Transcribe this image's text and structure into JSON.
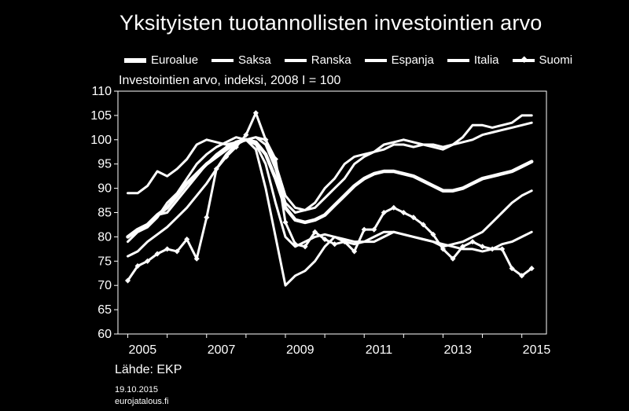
{
  "header": {
    "title": "Yksityisten tuotannollisten investointien arvo",
    "unit_label": "Investointien arvo, indeksi, 2008 I = 100"
  },
  "footer": {
    "source": "Lähde: EKP",
    "date": "19.10.2015",
    "site": "eurojatalous.fi"
  },
  "colors": {
    "background": "#000000",
    "lines": "#ffffff"
  },
  "chart_data": {
    "type": "line",
    "title": "Yksityisten tuotannollisten investointien arvo",
    "ylabel": "Investointien arvo, indeksi, 2008 I = 100",
    "ylim": [
      60,
      110
    ],
    "yticks": [
      60,
      65,
      70,
      75,
      80,
      85,
      90,
      95,
      100,
      105,
      110
    ],
    "xlim": [
      2004.75,
      2015.625
    ],
    "xticks": [
      "2005",
      "2007",
      "2009",
      "2011",
      "2013",
      "2015"
    ],
    "x_quarters": [
      "2005 I",
      "2005 II",
      "2005 III",
      "2005 IV",
      "2006 I",
      "2006 II",
      "2006 III",
      "2006 IV",
      "2007 I",
      "2007 II",
      "2007 III",
      "2007 IV",
      "2008 I",
      "2008 II",
      "2008 III",
      "2008 IV",
      "2009 I",
      "2009 II",
      "2009 III",
      "2009 IV",
      "2010 I",
      "2010 II",
      "2010 III",
      "2010 IV",
      "2011 I",
      "2011 II",
      "2011 III",
      "2011 IV",
      "2012 I",
      "2012 II",
      "2012 III",
      "2012 IV",
      "2013 I",
      "2013 II",
      "2013 III",
      "2013 IV",
      "2014 I",
      "2014 II",
      "2014 III",
      "2014 IV",
      "2015 I",
      "2015 II"
    ],
    "grid": false,
    "legend_position": "top",
    "series": [
      {
        "name": "Euroalue",
        "style": "thick",
        "values": [
          80.0,
          81.5,
          82.5,
          84.5,
          86.0,
          88.5,
          91.0,
          93.0,
          95.0,
          96.5,
          98.0,
          99.5,
          100.0,
          99.5,
          97.0,
          92.0,
          86.0,
          83.5,
          83.0,
          83.5,
          84.5,
          86.5,
          88.5,
          90.5,
          92.0,
          93.0,
          93.5,
          93.5,
          93.0,
          92.5,
          91.5,
          90.5,
          89.5,
          89.5,
          90.0,
          91.0,
          92.0,
          92.5,
          93.0,
          93.5,
          94.5,
          95.5
        ]
      },
      {
        "name": "Saksa",
        "style": "normal",
        "values": [
          79.0,
          81.0,
          82.0,
          84.0,
          87.0,
          89.0,
          92.0,
          95.0,
          97.0,
          98.5,
          99.5,
          100.5,
          100.0,
          100.5,
          99.0,
          94.0,
          87.0,
          85.0,
          85.5,
          87.0,
          90.0,
          92.0,
          95.0,
          96.5,
          97.0,
          97.5,
          98.0,
          99.0,
          99.0,
          98.5,
          99.0,
          99.0,
          98.5,
          99.0,
          99.5,
          100.0,
          101.0,
          101.5,
          102.0,
          102.5,
          103.0,
          103.5
        ]
      },
      {
        "name": "Ranska",
        "style": "normal",
        "values": [
          89.0,
          89.0,
          90.5,
          93.5,
          92.5,
          94.0,
          96.0,
          99.0,
          100.0,
          99.5,
          99.0,
          99.5,
          100.0,
          100.5,
          100.0,
          95.0,
          88.5,
          86.0,
          85.5,
          86.0,
          88.0,
          90.0,
          92.0,
          95.0,
          96.5,
          97.5,
          99.0,
          99.5,
          100.0,
          99.5,
          99.0,
          98.5,
          98.0,
          99.0,
          100.5,
          103.0,
          103.0,
          102.5,
          103.0,
          103.5,
          105.0,
          105.0
        ]
      },
      {
        "name": "Espanja",
        "style": "normal",
        "values": [
          76.0,
          77.0,
          79.0,
          80.5,
          82.0,
          84.0,
          86.0,
          88.5,
          91.0,
          94.0,
          97.0,
          99.0,
          100.0,
          98.0,
          90.0,
          80.0,
          70.0,
          72.0,
          73.0,
          75.0,
          78.0,
          80.0,
          79.5,
          79.0,
          79.0,
          79.0,
          80.0,
          81.0,
          80.5,
          80.0,
          79.5,
          79.0,
          78.0,
          78.5,
          79.0,
          80.0,
          81.0,
          83.0,
          85.0,
          87.0,
          88.5,
          89.5
        ]
      },
      {
        "name": "Italia",
        "style": "normal",
        "values": [
          80.0,
          81.0,
          82.0,
          84.5,
          85.0,
          87.5,
          90.0,
          92.5,
          95.0,
          97.0,
          98.5,
          99.5,
          100.0,
          99.0,
          95.0,
          87.0,
          80.0,
          78.0,
          79.0,
          80.0,
          80.5,
          80.0,
          79.0,
          78.5,
          79.0,
          80.0,
          81.0,
          81.0,
          80.5,
          80.0,
          79.5,
          79.0,
          78.5,
          78.0,
          77.5,
          77.5,
          77.0,
          77.5,
          78.5,
          79.0,
          80.0,
          81.0
        ]
      },
      {
        "name": "Suomi",
        "style": "marker",
        "values": [
          71.0,
          74.0,
          75.0,
          76.5,
          77.5,
          77.0,
          79.5,
          75.5,
          84.0,
          94.0,
          96.5,
          98.5,
          101.0,
          105.5,
          100.0,
          96.0,
          83.0,
          78.5,
          78.0,
          81.0,
          79.5,
          78.5,
          79.0,
          77.0,
          81.5,
          81.5,
          85.0,
          86.0,
          85.0,
          84.0,
          82.5,
          80.5,
          77.5,
          75.5,
          78.0,
          79.0,
          78.0,
          77.5,
          77.5,
          73.5,
          72.0,
          73.5
        ]
      }
    ]
  }
}
